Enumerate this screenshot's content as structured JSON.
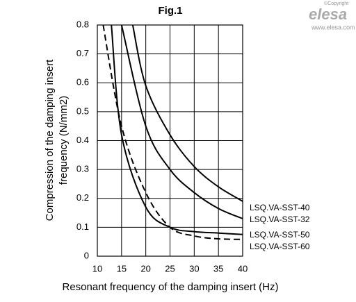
{
  "chart_data": {
    "type": "line",
    "title": "Fig.1",
    "xlabel": "Resonant frequency of the damping insert (Hz)",
    "ylabel": [
      "Compression of the damping insert",
      "frequency (N/mm2)"
    ],
    "xlim": [
      10,
      40
    ],
    "xticks": [
      10,
      15,
      20,
      25,
      30,
      35,
      40
    ],
    "ylim": [
      0,
      0.8
    ],
    "yticks": [
      0,
      0.1,
      0.2,
      0.3,
      0.4,
      0.5,
      0.6,
      0.7,
      0.8
    ],
    "grid": true,
    "series": [
      {
        "name": "LSQ.VA-SST-40",
        "color": "#000000",
        "dashed": false,
        "x": [
          17.3,
          20,
          25,
          30,
          35,
          40
        ],
        "values": [
          0.8,
          0.59,
          0.42,
          0.31,
          0.24,
          0.19
        ]
      },
      {
        "name": "LSQ.VA-SST-32",
        "color": "#000000",
        "dashed": false,
        "x": [
          15,
          20,
          25,
          30,
          35,
          40
        ],
        "values": [
          0.8,
          0.45,
          0.3,
          0.22,
          0.165,
          0.13
        ]
      },
      {
        "name": "LSQ.VA-SST-50",
        "color": "#000000",
        "dashed": false,
        "x": [
          12.9,
          15,
          20,
          25,
          30,
          35,
          40
        ],
        "values": [
          0.8,
          0.42,
          0.17,
          0.1,
          0.085,
          0.08,
          0.075
        ]
      },
      {
        "name": "LSQ.VA-SST-60",
        "color": "#000000",
        "dashed": true,
        "x": [
          11.2,
          15,
          20,
          25,
          30,
          35,
          40
        ],
        "values": [
          0.8,
          0.45,
          0.22,
          0.1,
          0.07,
          0.06,
          0.058
        ]
      }
    ]
  },
  "logo": {
    "copyright": "©Copyright",
    "brand": "elesa",
    "url": "www.elesa.com"
  }
}
